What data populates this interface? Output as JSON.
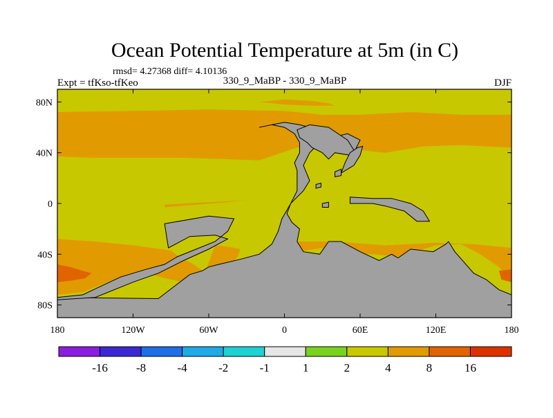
{
  "colors": {
    "land": "#a0a0a0",
    "coast": "#000000"
  },
  "chart_data": {
    "type": "heatmap",
    "title": "Ocean Potential Temperature at 5m (in C)",
    "stats": "rmsd= 4.27368  diff= 4.10136",
    "left_label": "Expt = tfKso-tfKeo",
    "center_label": "330_9_MaBP - 330_9_MaBP",
    "right_label": "DJF",
    "xlim": [
      -180,
      180
    ],
    "ylim": [
      -90,
      90
    ],
    "x_ticks": [
      {
        "value": -180,
        "label": "180"
      },
      {
        "value": -120,
        "label": "120W"
      },
      {
        "value": -60,
        "label": "60W"
      },
      {
        "value": 0,
        "label": "0"
      },
      {
        "value": 60,
        "label": "60E"
      },
      {
        "value": 120,
        "label": "120E"
      },
      {
        "value": 180,
        "label": "180"
      }
    ],
    "y_ticks": [
      {
        "value": 80,
        "label": "80N"
      },
      {
        "value": 40,
        "label": "40N"
      },
      {
        "value": 0,
        "label": "0"
      },
      {
        "value": -40,
        "label": "40S"
      },
      {
        "value": -80,
        "label": "80S"
      }
    ],
    "colorbar": {
      "colors": [
        "#8a1ee0",
        "#3c28d2",
        "#1e6ee6",
        "#1eaae6",
        "#1ed2d2",
        "#e6e6e6",
        "#78d21e",
        "#c8c800",
        "#e19b00",
        "#e16400",
        "#dc3200"
      ],
      "labels": [
        "-16",
        "-8",
        "-4",
        "-2",
        "-1",
        "1",
        "2",
        "4",
        "8",
        "16"
      ]
    },
    "background_value_color": "#c8c800",
    "regions": [
      {
        "name": "nh-band-4to8",
        "color": "#e19b00",
        "lonlat": [
          [
            -180,
            72
          ],
          [
            -120,
            73
          ],
          [
            -60,
            74
          ],
          [
            0,
            73
          ],
          [
            30,
            70
          ],
          [
            60,
            70
          ],
          [
            100,
            72
          ],
          [
            140,
            70
          ],
          [
            180,
            70
          ],
          [
            180,
            44
          ],
          [
            140,
            46
          ],
          [
            110,
            45
          ],
          [
            80,
            40
          ],
          [
            60,
            42
          ],
          [
            40,
            42
          ],
          [
            30,
            46
          ],
          [
            10,
            44
          ],
          [
            -20,
            34
          ],
          [
            -50,
            35
          ],
          [
            -80,
            36
          ],
          [
            -120,
            36
          ],
          [
            -150,
            36
          ],
          [
            -180,
            37
          ]
        ]
      },
      {
        "name": "arctic-tongue-4to8",
        "color": "#e19b00",
        "lonlat": [
          [
            -20,
            80
          ],
          [
            0,
            82
          ],
          [
            20,
            81
          ],
          [
            35,
            79
          ],
          [
            40,
            77
          ],
          [
            20,
            77
          ],
          [
            0,
            78
          ]
        ]
      },
      {
        "name": "equatorial-band-4to8",
        "color": "#e19b00",
        "lonlat": [
          [
            -95,
            -1
          ],
          [
            -80,
            0
          ],
          [
            -60,
            1
          ],
          [
            -40,
            2
          ],
          [
            -30,
            3
          ],
          [
            -45,
            1
          ],
          [
            -70,
            -1
          ],
          [
            -95,
            -3
          ]
        ]
      },
      {
        "name": "south-pacific-band-4to8",
        "color": "#e19b00",
        "lonlat": [
          [
            -180,
            -28
          ],
          [
            -150,
            -30
          ],
          [
            -120,
            -33
          ],
          [
            -90,
            -37
          ],
          [
            -85,
            -41
          ],
          [
            -72,
            -48
          ],
          [
            -62,
            -55
          ],
          [
            -50,
            -62
          ],
          [
            -60,
            -67
          ],
          [
            -75,
            -63
          ],
          [
            -90,
            -60
          ],
          [
            -110,
            -55
          ],
          [
            -135,
            -60
          ],
          [
            -160,
            -70
          ],
          [
            -180,
            -72
          ]
        ]
      },
      {
        "name": "south-pacific-16",
        "color": "#e16400",
        "lonlat": [
          [
            -180,
            -48
          ],
          [
            -170,
            -50
          ],
          [
            -160,
            -53
          ],
          [
            -153,
            -55
          ],
          [
            -158,
            -59
          ],
          [
            -170,
            -61
          ],
          [
            -180,
            -62
          ]
        ]
      },
      {
        "name": "south-atlantic-4to8",
        "color": "#e19b00",
        "lonlat": [
          [
            -55,
            -33
          ],
          [
            -45,
            -34
          ],
          [
            -35,
            -36
          ],
          [
            -37,
            -42
          ],
          [
            -42,
            -48
          ],
          [
            -45,
            -55
          ],
          [
            -40,
            -58
          ],
          [
            -35,
            -60
          ],
          [
            -35,
            -66
          ],
          [
            -50,
            -70
          ],
          [
            -75,
            -75
          ],
          [
            -100,
            -75
          ],
          [
            -85,
            -68
          ],
          [
            -65,
            -60
          ]
        ]
      },
      {
        "name": "south-atlantic-16",
        "color": "#e16400",
        "lonlat": [
          [
            -68,
            -62
          ],
          [
            -62,
            -59
          ],
          [
            -55,
            -58
          ],
          [
            -48,
            -56
          ],
          [
            -50,
            -60
          ],
          [
            -60,
            -64
          ],
          [
            -68,
            -66
          ]
        ]
      },
      {
        "name": "southern-band-4to8",
        "color": "#e19b00",
        "lonlat": [
          [
            10,
            -30
          ],
          [
            40,
            -30
          ],
          [
            80,
            -33
          ],
          [
            120,
            -31
          ],
          [
            150,
            -32
          ],
          [
            180,
            -35
          ],
          [
            180,
            -62
          ],
          [
            170,
            -50
          ],
          [
            155,
            -40
          ],
          [
            140,
            -32
          ],
          [
            120,
            -33
          ],
          [
            90,
            -42
          ],
          [
            70,
            -40
          ],
          [
            50,
            -40
          ],
          [
            30,
            -35
          ],
          [
            10,
            -38
          ]
        ]
      },
      {
        "name": "east-edge-16",
        "color": "#e16400",
        "lonlat": [
          [
            170,
            -53
          ],
          [
            180,
            -52
          ],
          [
            180,
            -62
          ],
          [
            172,
            -60
          ]
        ]
      },
      {
        "name": "land-americas",
        "color": "#a0a0a0",
        "lonlat": [
          [
            -20,
            60
          ],
          [
            -10,
            62
          ],
          [
            0,
            60
          ],
          [
            8,
            55
          ],
          [
            12,
            48
          ],
          [
            12,
            40
          ],
          [
            8,
            32
          ],
          [
            10,
            26
          ],
          [
            10,
            10
          ],
          [
            5,
            0
          ],
          [
            -2,
            -12
          ],
          [
            -5,
            -22
          ],
          [
            -10,
            -32
          ],
          [
            -20,
            -40
          ],
          [
            -35,
            -44
          ],
          [
            -52,
            -48
          ],
          [
            -60,
            -50
          ],
          [
            -65,
            -53
          ],
          [
            -75,
            -56
          ],
          [
            -100,
            -75
          ],
          [
            -180,
            -74
          ],
          [
            -180,
            -90
          ],
          [
            180,
            -90
          ],
          [
            180,
            -72
          ],
          [
            170,
            -68
          ],
          [
            160,
            -60
          ],
          [
            150,
            -55
          ],
          [
            135,
            -38
          ],
          [
            130,
            -30
          ],
          [
            128,
            -32
          ],
          [
            118,
            -38
          ],
          [
            100,
            -36
          ],
          [
            90,
            -43
          ],
          [
            85,
            -40
          ],
          [
            75,
            -45
          ],
          [
            60,
            -38
          ],
          [
            45,
            -30
          ],
          [
            35,
            -30
          ],
          [
            28,
            -40
          ],
          [
            15,
            -38
          ],
          [
            10,
            -30
          ],
          [
            12,
            -20
          ],
          [
            6,
            -15
          ],
          [
            2,
            -8
          ],
          [
            5,
            0
          ],
          [
            10,
            5
          ],
          [
            15,
            10
          ],
          [
            20,
            18
          ],
          [
            15,
            30
          ],
          [
            20,
            40
          ],
          [
            25,
            45
          ],
          [
            35,
            45
          ],
          [
            38,
            40
          ],
          [
            50,
            45
          ],
          [
            55,
            40
          ],
          [
            60,
            50
          ],
          [
            50,
            55
          ],
          [
            30,
            50
          ],
          [
            20,
            60
          ],
          [
            12,
            62
          ],
          [
            0,
            64
          ],
          [
            -10,
            62
          ]
        ]
      },
      {
        "name": "land-west-coast-strip",
        "color": "#a0a0a0",
        "lonlat": [
          [
            -95,
            -16
          ],
          [
            -60,
            -10
          ],
          [
            -40,
            -12
          ],
          [
            -45,
            -22
          ],
          [
            -55,
            -30
          ],
          [
            -70,
            -36
          ],
          [
            -85,
            -42
          ],
          [
            -95,
            -48
          ],
          [
            -110,
            -52
          ],
          [
            -130,
            -58
          ],
          [
            -160,
            -72
          ],
          [
            -180,
            -74
          ],
          [
            -180,
            -76
          ],
          [
            -150,
            -74
          ],
          [
            -120,
            -62
          ],
          [
            -100,
            -55
          ],
          [
            -80,
            -45
          ],
          [
            -60,
            -36
          ],
          [
            -45,
            -28
          ],
          [
            -55,
            -25
          ],
          [
            -75,
            -26
          ],
          [
            -92,
            -35
          ]
        ]
      },
      {
        "name": "land-north-east",
        "color": "#a0a0a0",
        "lonlat": [
          [
            10,
            58
          ],
          [
            20,
            62
          ],
          [
            35,
            60
          ],
          [
            50,
            50
          ],
          [
            55,
            42
          ],
          [
            52,
            38
          ],
          [
            40,
            40
          ],
          [
            35,
            35
          ],
          [
            30,
            40
          ],
          [
            22,
            44
          ],
          [
            18,
            48
          ],
          [
            12,
            52
          ]
        ]
      },
      {
        "name": "land-tibet-india",
        "color": "#a0a0a0",
        "lonlat": [
          [
            45,
            24
          ],
          [
            55,
            30
          ],
          [
            60,
            38
          ],
          [
            62,
            45
          ],
          [
            58,
            44
          ],
          [
            52,
            40
          ],
          [
            48,
            32
          ]
        ]
      },
      {
        "name": "land-east-spit",
        "color": "#a0a0a0",
        "lonlat": [
          [
            52,
            5
          ],
          [
            70,
            4
          ],
          [
            85,
            4
          ],
          [
            100,
            0
          ],
          [
            110,
            -6
          ],
          [
            115,
            -14
          ],
          [
            105,
            -14
          ],
          [
            95,
            -6
          ],
          [
            80,
            -2
          ],
          [
            70,
            0
          ],
          [
            60,
            0
          ],
          [
            52,
            0
          ]
        ]
      },
      {
        "name": "island-1",
        "color": "#a0a0a0",
        "lonlat": [
          [
            40,
            25
          ],
          [
            45,
            27
          ],
          [
            45,
            22
          ],
          [
            40,
            21
          ]
        ]
      },
      {
        "name": "island-2",
        "color": "#a0a0a0",
        "lonlat": [
          [
            25,
            15
          ],
          [
            29,
            16
          ],
          [
            29,
            13
          ],
          [
            25,
            12
          ]
        ]
      },
      {
        "name": "island-3",
        "color": "#a0a0a0",
        "lonlat": [
          [
            30,
            0
          ],
          [
            35,
            1
          ],
          [
            35,
            -3
          ],
          [
            30,
            -3
          ]
        ]
      }
    ]
  }
}
